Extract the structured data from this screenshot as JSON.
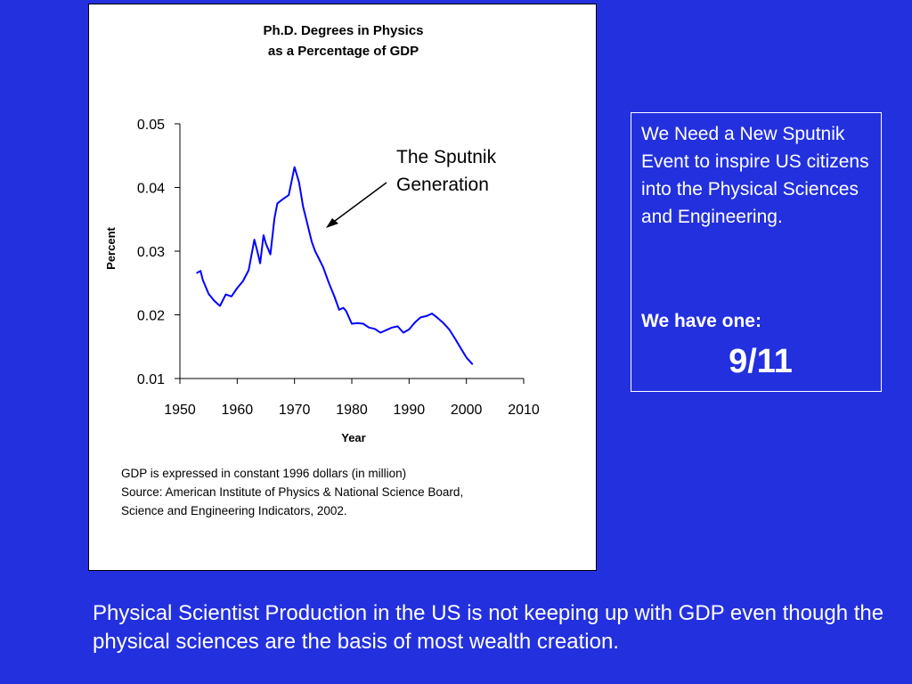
{
  "chart_data": {
    "type": "line",
    "title": "Ph.D. Degrees in Physics",
    "subtitle": "as a Percentage of GDP",
    "xlabel": "Year",
    "ylabel": "Percent",
    "xlim": [
      1950,
      2010
    ],
    "ylim": [
      0.01,
      0.05
    ],
    "xticks": [
      "1950",
      "1960",
      "1970",
      "1980",
      "1990",
      "2000",
      "2010"
    ],
    "yticks": [
      "0.05",
      "0.04",
      "0.03",
      "0.02",
      "0.01"
    ],
    "grid": false,
    "annotation": [
      "The Sputnik",
      "Generation"
    ],
    "line_color": "#0000ff",
    "series": [
      {
        "x": [
          1953,
          1953.6,
          1954,
          1955,
          1956,
          1957,
          1958,
          1959,
          1960,
          1961,
          1962,
          1963,
          1963.5,
          1964,
          1964.6,
          1965,
          1965.8,
          1966.5,
          1967,
          1968,
          1969,
          1970,
          1970.8,
          1971.5,
          1972,
          1973,
          1973.6,
          1974,
          1975,
          1976,
          1977,
          1977.8,
          1978.5,
          1979,
          1980,
          1981,
          1982,
          1983,
          1984,
          1985,
          1986,
          1987,
          1988,
          1989,
          1990,
          1991,
          1992,
          1993,
          1994,
          1995,
          1996,
          1997,
          1998,
          1999,
          2000,
          2001
        ],
        "y": [
          0.0266,
          0.0269,
          0.0255,
          0.0233,
          0.0222,
          0.0214,
          0.0232,
          0.0229,
          0.0242,
          0.0253,
          0.027,
          0.0318,
          0.03,
          0.0281,
          0.0325,
          0.0312,
          0.0295,
          0.0352,
          0.0375,
          0.0382,
          0.0388,
          0.0432,
          0.0408,
          0.037,
          0.0352,
          0.0315,
          0.03,
          0.0293,
          0.0275,
          0.025,
          0.0228,
          0.0208,
          0.0211,
          0.0206,
          0.0186,
          0.0187,
          0.0186,
          0.018,
          0.0178,
          0.0172,
          0.0176,
          0.018,
          0.0182,
          0.0172,
          0.0177,
          0.0188,
          0.0196,
          0.0198,
          0.0202,
          0.0195,
          0.0187,
          0.0177,
          0.0163,
          0.0148,
          0.0133,
          0.0123
        ]
      }
    ]
  },
  "notes": [
    "GDP is expressed in constant 1996 dollars (in million)",
    "Source: American Institute of Physics & National Science Board,",
    "Science and Engineering Indicators, 2002."
  ],
  "side_box": {
    "text": "We Need a New Sputnik Event to inspire US citizens into the Physical Sciences and Engineering.",
    "have_label": "We have one:",
    "date": "9/11"
  },
  "bottom_text": "Physical Scientist Production in the US is not keeping up with GDP even though the physical sciences are the basis of most wealth creation.",
  "colors": {
    "background": "#2330de",
    "panel": "#ffffff",
    "text_light": "#ffffff"
  }
}
